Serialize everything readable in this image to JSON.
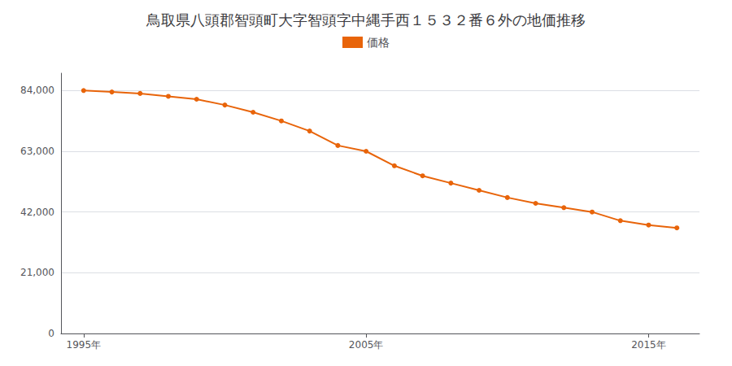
{
  "chart_data": {
    "type": "line",
    "title": "鳥取県八頭郡智頭町大字智頭字中縄手西１５３２番６外の地価推移",
    "x": [
      1995,
      1996,
      1997,
      1998,
      1999,
      2000,
      2001,
      2002,
      2003,
      2004,
      2005,
      2006,
      2007,
      2008,
      2009,
      2010,
      2011,
      2012,
      2013,
      2014,
      2015,
      2016
    ],
    "series": [
      {
        "name": "価格",
        "color": "#E8640A",
        "marker": "circle",
        "values": [
          84000,
          83500,
          83000,
          82000,
          81000,
          79000,
          76500,
          73500,
          70000,
          65000,
          63000,
          58000,
          54500,
          52000,
          49500,
          47000,
          45000,
          43500,
          42000,
          39000,
          37500,
          36500
        ]
      }
    ],
    "xlim": [
      1994.2,
      2016.8
    ],
    "xticks": [
      {
        "value": 1995,
        "label": "1995年"
      },
      {
        "value": 2005,
        "label": "2005年"
      },
      {
        "value": 2015,
        "label": "2015年"
      }
    ],
    "ylim": [
      0,
      90000
    ],
    "yticks": [
      0,
      {
        "value": 21000,
        "label": "21,000"
      },
      {
        "value": 42000,
        "label": "42,000"
      },
      {
        "value": 63000,
        "label": "63,000"
      },
      {
        "value": 84000,
        "label": "84,000"
      }
    ],
    "grid": true,
    "legend": "top"
  }
}
